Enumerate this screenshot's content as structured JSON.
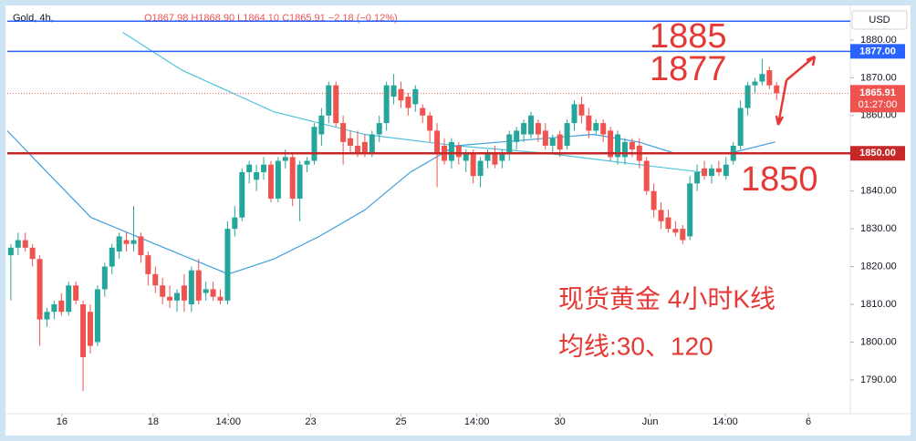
{
  "header": {
    "symbol": "Gold, 4h,",
    "ohlc": "O1867.98 H1868.90 L1864.10 C1865.91 −2.18 (−0.12%)"
  },
  "chart_data": {
    "type": "candlestick",
    "currency": "USD",
    "open": [
      1823,
      1825,
      1827,
      1825,
      1822,
      1806,
      1808,
      1811,
      1808,
      1815,
      1810,
      1808,
      1800,
      1814,
      1820,
      1824,
      1827,
      1826,
      1828,
      1823,
      1818,
      1815,
      1812,
      1811,
      1815,
      1810,
      1819,
      1813,
      1814,
      1812,
      1811,
      1830,
      1833,
      1845,
      1843,
      1845,
      1847,
      1838,
      1848,
      1849,
      1838,
      1847,
      1848,
      1855,
      1860,
      1868,
      1858,
      1854,
      1852,
      1853,
      1850,
      1855,
      1858,
      1865,
      1867,
      1865,
      1863,
      1862,
      1860,
      1856,
      1852,
      1848,
      1852,
      1848,
      1850,
      1844,
      1848,
      1850,
      1848,
      1850,
      1853,
      1855,
      1855,
      1858,
      1856,
      1852,
      1855,
      1852,
      1858,
      1863,
      1860,
      1856,
      1858,
      1856,
      1849,
      1849,
      1853,
      1852,
      1848,
      1840,
      1835,
      1833,
      1830,
      1830,
      1828,
      1842,
      1846,
      1844,
      1846,
      1844,
      1848,
      1852,
      1862,
      1868,
      1869,
      1872,
      1867.98
    ],
    "high": [
      1826,
      1829,
      1829,
      1826,
      1823,
      1809,
      1811,
      1813,
      1816,
      1816,
      1811,
      1810,
      1815,
      1821,
      1826,
      1829,
      1829,
      1836,
      1829,
      1824,
      1820,
      1817,
      1815,
      1814,
      1818,
      1820,
      1822,
      1816,
      1816,
      1814,
      1832,
      1836,
      1846,
      1848,
      1847,
      1849,
      1848,
      1849,
      1851,
      1850,
      1848,
      1849,
      1858,
      1862,
      1869,
      1869,
      1860,
      1856,
      1856,
      1855,
      1856,
      1860,
      1869,
      1871,
      1869,
      1866,
      1868,
      1863,
      1861,
      1858,
      1854,
      1854,
      1853,
      1851,
      1851,
      1849,
      1851,
      1852,
      1851,
      1856,
      1857,
      1859,
      1861,
      1859,
      1858,
      1855,
      1856,
      1859,
      1864,
      1865,
      1862,
      1859,
      1859,
      1857,
      1856,
      1854,
      1854,
      1854,
      1849,
      1842,
      1837,
      1835,
      1832,
      1831,
      1844,
      1847,
      1848,
      1847,
      1848,
      1849,
      1853,
      1864,
      1869,
      1870,
      1875,
      1873,
      1868.9
    ],
    "low": [
      1811,
      1823,
      1824,
      1820,
      1799,
      1804,
      1806,
      1807,
      1807,
      1810,
      1787,
      1797,
      1799,
      1812,
      1818,
      1822,
      1824,
      1824,
      1821,
      1815,
      1813,
      1810,
      1809,
      1808,
      1808,
      1808,
      1810,
      1811,
      1811,
      1810,
      1810,
      1828,
      1832,
      1842,
      1840,
      1843,
      1837,
      1837,
      1846,
      1836,
      1832,
      1845,
      1847,
      1852,
      1858,
      1857,
      1847,
      1850,
      1849,
      1849,
      1849,
      1853,
      1856,
      1863,
      1862,
      1860,
      1861,
      1858,
      1853,
      1841,
      1847,
      1846,
      1847,
      1845,
      1842,
      1841,
      1846,
      1846,
      1846,
      1848,
      1851,
      1853,
      1854,
      1853,
      1851,
      1850,
      1849,
      1851,
      1856,
      1858,
      1854,
      1855,
      1853,
      1848,
      1847,
      1847,
      1849,
      1846,
      1839,
      1833,
      1830,
      1829,
      1828,
      1826,
      1827,
      1840,
      1843,
      1842,
      1844,
      1843,
      1847,
      1851,
      1860,
      1866,
      1868,
      1867,
      1864.1
    ],
    "close": [
      1825,
      1827,
      1825,
      1822,
      1806,
      1808,
      1810,
      1808,
      1815,
      1811,
      1796,
      1799,
      1814,
      1820,
      1825,
      1828,
      1826,
      1827,
      1823,
      1818,
      1815,
      1812,
      1811,
      1813,
      1811,
      1819,
      1811,
      1814,
      1812,
      1811,
      1830,
      1833,
      1845,
      1847,
      1845,
      1847,
      1838,
      1848,
      1849,
      1838,
      1847,
      1848,
      1857,
      1860,
      1868,
      1858,
      1853,
      1852,
      1850,
      1850,
      1855,
      1858,
      1868,
      1868,
      1864,
      1862,
      1867,
      1860,
      1856,
      1850,
      1848,
      1853,
      1849,
      1850,
      1844,
      1848,
      1850,
      1847,
      1850,
      1855,
      1856,
      1858,
      1860,
      1855,
      1852,
      1854,
      1851,
      1858,
      1863,
      1860,
      1856,
      1858,
      1855,
      1849,
      1855,
      1853,
      1851,
      1848,
      1840,
      1835,
      1832,
      1830,
      1829,
      1827,
      1842,
      1845,
      1844,
      1846,
      1845,
      1847,
      1852,
      1862,
      1868,
      1869,
      1871,
      1868,
      1865.91
    ],
    "up_color": "#26a69a",
    "down_color": "#ef5350",
    "ma_series": [
      {
        "color": "#4fc3dc",
        "x": [
          15.5,
          23.7,
          36.4,
          49,
          61.6,
          74.2,
          86.9,
          95.7
        ],
        "values": [
          1882,
          1872,
          1861,
          1855,
          1852,
          1850,
          1847,
          1845
        ]
      },
      {
        "color": "#3f9fe0",
        "x": [
          -0.5,
          3.5,
          11.1,
          21.2,
          30.1,
          36.4,
          42.7,
          49,
          55.3,
          61.6,
          67.9,
          74.2,
          80.6,
          86.9,
          91.9,
          99.5,
          105.8
        ],
        "values": [
          1856,
          1848,
          1833,
          1825,
          1818,
          1822,
          1828,
          1835,
          1845,
          1852,
          1853,
          1854,
          1855,
          1853,
          1850,
          1850,
          1853
        ]
      }
    ],
    "levels": [
      {
        "value": 1885,
        "color": "#2962ff"
      },
      {
        "value": 1877,
        "label": "1877.00",
        "color": "#2962ff"
      },
      {
        "value": 1850,
        "label": "1850.00",
        "color": "#c62828"
      }
    ],
    "current_price": {
      "value": 1865.91,
      "label": "1865.91",
      "countdown": "01:27:00",
      "color": "#ef5350"
    },
    "annotations": [
      "1885",
      "1877",
      "1850",
      "现货黄金 4小时K线",
      "均线:30、120"
    ],
    "xlim": [
      -1.5,
      116.2
    ],
    "ylim": [
      1780.8,
      1890.6
    ],
    "xticks": [
      {
        "value": 7.07,
        "label": "16"
      },
      {
        "value": 19.7,
        "label": "18"
      },
      {
        "value": 30.1,
        "label": "14:00"
      },
      {
        "value": 41.5,
        "label": "23"
      },
      {
        "value": 54,
        "label": "25"
      },
      {
        "value": 64.5,
        "label": "14:00"
      },
      {
        "value": 76,
        "label": "30"
      },
      {
        "value": 88.5,
        "label": "Jun"
      },
      {
        "value": 98.9,
        "label": "14:00"
      },
      {
        "value": 110.4,
        "label": "6"
      }
    ],
    "yticks": [
      {
        "value": 1790,
        "label": "1790.00"
      },
      {
        "value": 1800,
        "label": "1800.00"
      },
      {
        "value": 1810,
        "label": "1810.00"
      },
      {
        "value": 1820,
        "label": "1820.00"
      },
      {
        "value": 1830,
        "label": "1830.00"
      },
      {
        "value": 1840,
        "label": "1840.00"
      },
      {
        "value": 1850,
        "label": "1850.00"
      },
      {
        "value": 1860,
        "label": "1860.00"
      },
      {
        "value": 1870,
        "label": "1870.00"
      },
      {
        "value": 1880,
        "label": "1880.00"
      }
    ]
  }
}
